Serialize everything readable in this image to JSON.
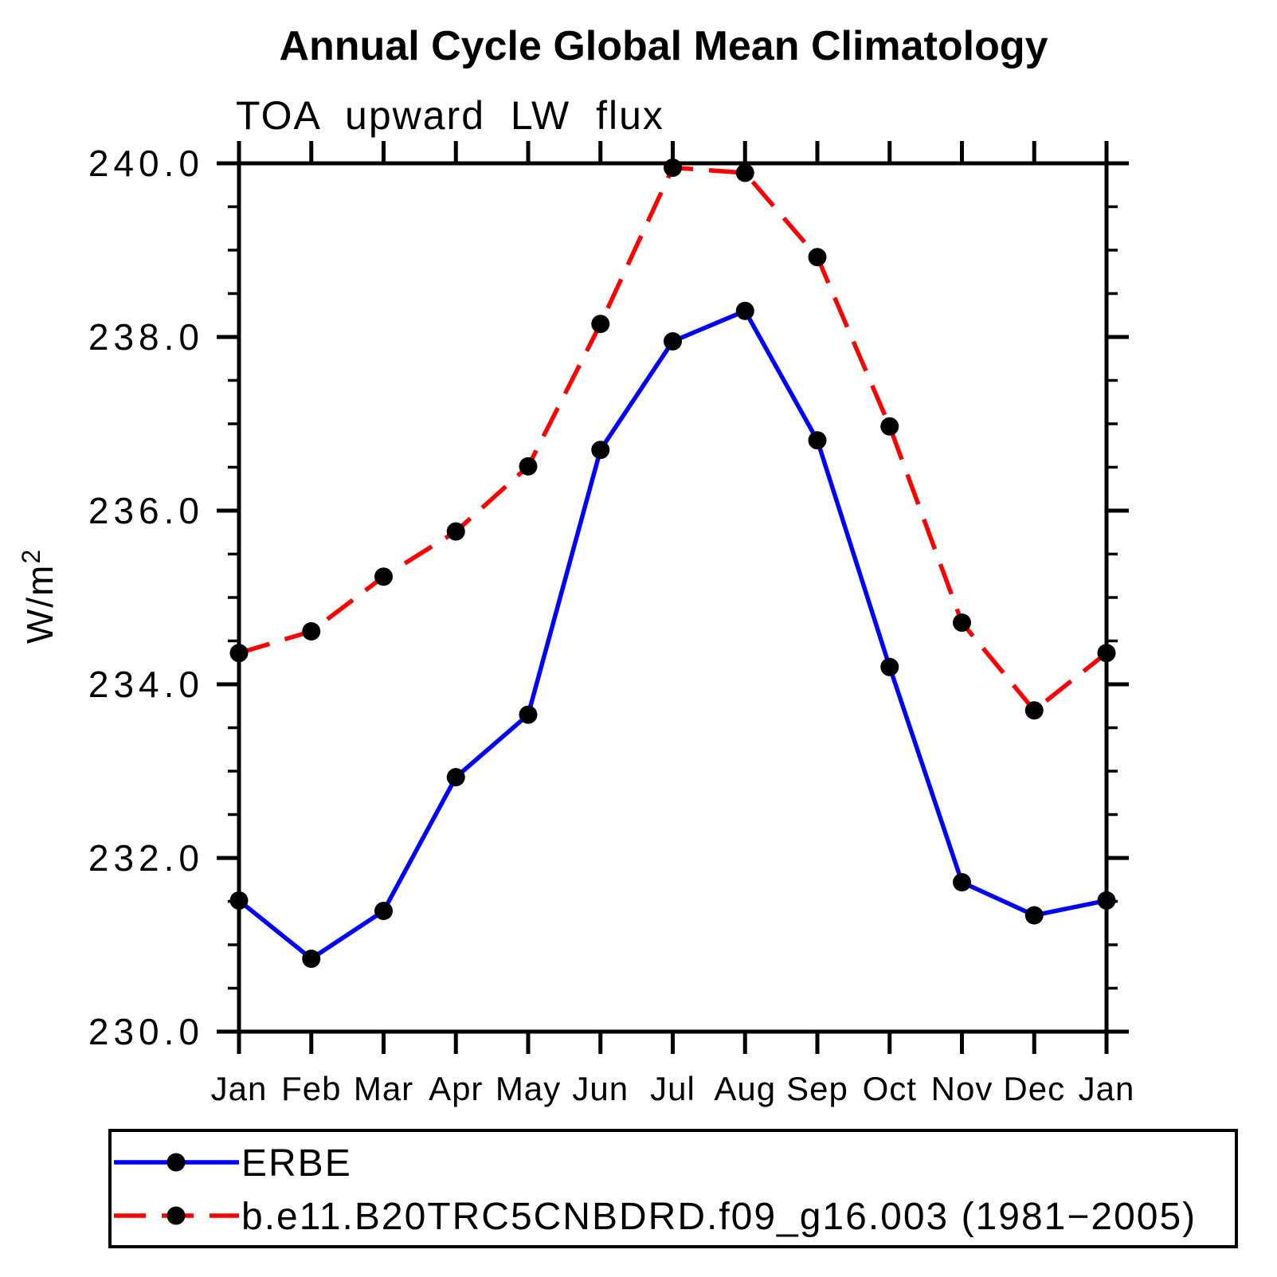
{
  "chart_data": {
    "type": "line",
    "title": "Annual Cycle Global Mean Climatology",
    "subtitle": "TOA upward LW flux",
    "ylabel": "W/m²",
    "ylabel_base": "W/m",
    "ylabel_sup": "2",
    "xlabel": "",
    "categories": [
      "Jan",
      "Feb",
      "Mar",
      "Apr",
      "May",
      "Jun",
      "Jul",
      "Aug",
      "Sep",
      "Oct",
      "Nov",
      "Dec",
      "Jan"
    ],
    "series": [
      {
        "name": "ERBE",
        "color": "#0000ff",
        "line_style": "solid",
        "marker": "filled-circle",
        "marker_color": "#000000",
        "values": [
          231.51,
          230.84,
          231.39,
          232.93,
          233.65,
          236.7,
          237.95,
          238.3,
          236.81,
          234.2,
          231.72,
          231.34,
          231.51
        ]
      },
      {
        "name": "b.e11.B20TRC5CNBDRD.f09_g16.003 (1981−2005)",
        "color": "#ff0000",
        "line_style": "dashed",
        "marker": "filled-circle",
        "marker_color": "#000000",
        "values": [
          234.36,
          234.61,
          235.24,
          235.76,
          236.51,
          238.15,
          239.95,
          239.89,
          238.92,
          236.97,
          234.71,
          233.7,
          234.36
        ]
      }
    ],
    "ylim": [
      230.0,
      240.0
    ],
    "y_major_ticks": [
      230.0,
      232.0,
      234.0,
      236.0,
      238.0,
      240.0
    ],
    "y_tick_labels": [
      "230.0",
      "232.0",
      "234.0",
      "236.0",
      "238.0",
      "240.0"
    ],
    "y_minor_step": 0.5,
    "grid": false,
    "frame_color": "#000000",
    "legend_position": "bottom"
  }
}
